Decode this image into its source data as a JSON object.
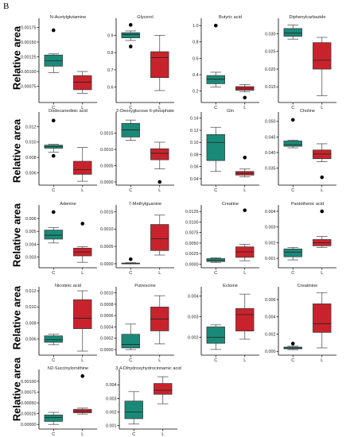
{
  "figure": {
    "panel_label": "B",
    "row_ylabel": "Relative area",
    "group_fill": {
      "C": "#1a8a78",
      "L": "#c8232c"
    }
  },
  "chart_data": [
    {
      "type": "box",
      "title": "N-Acetylglutamine",
      "ylabel": "Relative area",
      "categories": [
        "C",
        "L"
      ],
      "ylim": [
        0.0005,
        0.00185
      ],
      "yticks": [
        "0.00175",
        "0.00150",
        "0.00125",
        "0.00100",
        "0.00075"
      ],
      "ytick_values": [
        0.00175,
        0.0015,
        0.00125,
        0.001,
        0.00075
      ],
      "boxes": [
        {
          "group": "C",
          "whisker_low": 0.00098,
          "q1": 0.00109,
          "median": 0.00118,
          "q3": 0.00128,
          "whisker_high": 0.0013,
          "outliers": [
            0.0017
          ]
        },
        {
          "group": "L",
          "whisker_low": 0.00063,
          "q1": 0.00069,
          "median": 0.00082,
          "q3": 0.00093,
          "whisker_high": 0.001,
          "outliers": []
        }
      ]
    },
    {
      "type": "box",
      "title": "Glycerol",
      "categories": [
        "C",
        "L"
      ],
      "ylim": [
        0.52,
        0.98
      ],
      "yticks": [
        "0.9",
        "0.8",
        "0.7",
        "0.6"
      ],
      "ytick_values": [
        0.9,
        0.8,
        0.7,
        0.6
      ],
      "boxes": [
        {
          "group": "C",
          "whisker_low": 0.87,
          "q1": 0.885,
          "median": 0.905,
          "q3": 0.915,
          "whisker_high": 0.925,
          "outliers": [
            0.96,
            0.835
          ]
        },
        {
          "group": "L",
          "whisker_low": 0.58,
          "q1": 0.655,
          "median": 0.77,
          "q3": 0.805,
          "whisker_high": 0.9,
          "outliers": []
        }
      ]
    },
    {
      "type": "box",
      "title": "Butyric acid",
      "categories": [
        "C",
        "L"
      ],
      "ylim": [
        0.08,
        1.05
      ],
      "yticks": [
        "1.0",
        "0.8",
        "0.6",
        "0.4",
        "0.2"
      ],
      "ytick_values": [
        1.0,
        0.8,
        0.6,
        0.4,
        0.2
      ],
      "boxes": [
        {
          "group": "C",
          "whisker_low": 0.25,
          "q1": 0.29,
          "median": 0.345,
          "q3": 0.39,
          "whisker_high": 0.43,
          "outliers": [
            1.0
          ]
        },
        {
          "group": "L",
          "whisker_low": 0.19,
          "q1": 0.21,
          "median": 0.235,
          "q3": 0.255,
          "whisker_high": 0.28,
          "outliers": [
            0.12
          ]
        }
      ]
    },
    {
      "type": "box",
      "title": "Diphenylcarbazide",
      "categories": [
        "C",
        "L"
      ],
      "ylim": [
        0.011,
        0.0335
      ],
      "yticks": [
        "0.030",
        "0.025",
        "0.020",
        "0.015"
      ],
      "ytick_values": [
        0.03,
        0.025,
        0.02,
        0.015
      ],
      "boxes": [
        {
          "group": "C",
          "whisker_low": 0.0285,
          "q1": 0.0293,
          "median": 0.0302,
          "q3": 0.0315,
          "whisker_high": 0.0325,
          "outliers": []
        },
        {
          "group": "L",
          "whisker_low": 0.0125,
          "q1": 0.02,
          "median": 0.0225,
          "q3": 0.0275,
          "whisker_high": 0.029,
          "outliers": []
        }
      ]
    },
    {
      "type": "box",
      "title": "Dodecanedioic acid",
      "ylabel": "Relative area",
      "categories": [
        "C",
        "L"
      ],
      "ylim": [
        0.0046,
        0.0135
      ],
      "yticks": [
        "0.012",
        "0.010",
        "0.008",
        "0.006"
      ],
      "ytick_values": [
        0.012,
        0.01,
        0.008,
        0.006
      ],
      "boxes": [
        {
          "group": "C",
          "whisker_low": 0.0087,
          "q1": 0.0092,
          "median": 0.0094,
          "q3": 0.0096,
          "whisker_high": 0.0097,
          "outliers": [
            0.0128,
            0.0082
          ]
        },
        {
          "group": "L",
          "whisker_low": 0.0049,
          "q1": 0.0058,
          "median": 0.0064,
          "q3": 0.0075,
          "whisker_high": 0.0093,
          "outliers": []
        }
      ]
    },
    {
      "type": "box",
      "title": "2-Deoxyglucose 6-phosphate",
      "categories": [
        "C",
        "L"
      ],
      "ylim": [
        -5e-05,
        0.00205
      ],
      "yticks": [
        "0.0015",
        "0.0010",
        "0.0005",
        "0.0000"
      ],
      "ytick_values": [
        0.0015,
        0.001,
        0.0005,
        0.0
      ],
      "boxes": [
        {
          "group": "C",
          "whisker_low": 0.00128,
          "q1": 0.00138,
          "median": 0.0016,
          "q3": 0.0018,
          "whisker_high": 0.0019,
          "outliers": []
        },
        {
          "group": "L",
          "whisker_low": 0.0004,
          "q1": 0.00068,
          "median": 0.00088,
          "q3": 0.00102,
          "whisker_high": 0.00122,
          "outliers": [
            0.0
          ]
        }
      ]
    },
    {
      "type": "box",
      "title": "Gln",
      "categories": [
        "C",
        "L"
      ],
      "ylim": [
        0.032,
        0.145
      ],
      "yticks": [
        "0.14",
        "0.12",
        "0.10",
        "0.08",
        "0.06",
        "0.04"
      ],
      "ytick_values": [
        0.14,
        0.12,
        0.1,
        0.08,
        0.06,
        0.04
      ],
      "boxes": [
        {
          "group": "C",
          "whisker_low": 0.052,
          "q1": 0.07,
          "median": 0.1,
          "q3": 0.113,
          "whisker_high": 0.125,
          "outliers": []
        },
        {
          "group": "L",
          "whisker_low": 0.043,
          "q1": 0.046,
          "median": 0.049,
          "q3": 0.052,
          "whisker_high": 0.056,
          "outliers": [
            0.075
          ]
        }
      ]
    },
    {
      "type": "box",
      "title": "Choline",
      "categories": [
        "C",
        "L"
      ],
      "ylim": [
        0.03,
        0.052
      ],
      "yticks": [
        "0.050",
        "0.045",
        "0.040",
        "0.035"
      ],
      "ytick_values": [
        0.05,
        0.045,
        0.04,
        0.035
      ],
      "boxes": [
        {
          "group": "C",
          "whisker_low": 0.0415,
          "q1": 0.042,
          "median": 0.0425,
          "q3": 0.0437,
          "whisker_high": 0.044,
          "outliers": [
            0.0505
          ]
        },
        {
          "group": "L",
          "whisker_low": 0.037,
          "q1": 0.038,
          "median": 0.0395,
          "q3": 0.0408,
          "whisker_high": 0.0428,
          "outliers": [
            0.032
          ]
        }
      ]
    },
    {
      "type": "box",
      "title": "Adenine",
      "ylabel": "Relative area",
      "categories": [
        "C",
        "L"
      ],
      "ylim": [
        0.0023,
        0.0068
      ],
      "yticks": [
        "0.006",
        "0.005",
        "0.004",
        "0.003"
      ],
      "ytick_values": [
        0.006,
        0.005,
        0.004,
        0.003
      ],
      "boxes": [
        {
          "group": "C",
          "whisker_low": 0.0041,
          "q1": 0.0044,
          "median": 0.0047,
          "q3": 0.0051,
          "whisker_high": 0.0053,
          "outliers": [
            0.0065
          ]
        },
        {
          "group": "L",
          "whisker_low": 0.0026,
          "q1": 0.0031,
          "median": 0.0034,
          "q3": 0.0037,
          "whisker_high": 0.0038,
          "outliers": [
            0.0056
          ]
        }
      ]
    },
    {
      "type": "box",
      "title": "7-Methylguanine",
      "categories": [
        "C",
        "L"
      ],
      "ylim": [
        -7e-05,
        0.0016
      ],
      "yticks": [
        "0.0015",
        "0.0010",
        "0.0005",
        "0.0000"
      ],
      "ytick_values": [
        0.0015,
        0.001,
        0.0005,
        0.0
      ],
      "boxes": [
        {
          "group": "C",
          "whisker_low": 0.0,
          "q1": 0.0,
          "median": 0.0,
          "q3": 2e-05,
          "whisker_high": 3e-05,
          "outliers": [
            0.00013
          ]
        },
        {
          "group": "L",
          "whisker_low": 0.00025,
          "q1": 0.00038,
          "median": 0.00072,
          "q3": 0.00113,
          "whisker_high": 0.0014,
          "outliers": []
        }
      ]
    },
    {
      "type": "box",
      "title": "Creatine",
      "categories": [
        "C",
        "L"
      ],
      "ylim": [
        -0.0005,
        0.0133
      ],
      "yticks": [
        "0.0125",
        "0.0100",
        "0.0075",
        "0.0050",
        "0.0025",
        "0.0000"
      ],
      "ytick_values": [
        0.0125,
        0.01,
        0.0075,
        0.005,
        0.0025,
        0.0
      ],
      "boxes": [
        {
          "group": "C",
          "whisker_low": 0.0004,
          "q1": 0.0006,
          "median": 0.0009,
          "q3": 0.0013,
          "whisker_high": 0.0015,
          "outliers": []
        },
        {
          "group": "L",
          "whisker_low": 0.0008,
          "q1": 0.0016,
          "median": 0.0029,
          "q3": 0.0041,
          "whisker_high": 0.0047,
          "outliers": [
            0.0128
          ]
        }
      ]
    },
    {
      "type": "box",
      "title": "Pantothenic acid",
      "categories": [
        "C",
        "L"
      ],
      "ylim": [
        0.0005,
        0.0042
      ],
      "yticks": [
        "0.004",
        "0.003",
        "0.002",
        "0.001"
      ],
      "ytick_values": [
        0.004,
        0.003,
        0.002,
        0.001
      ],
      "boxes": [
        {
          "group": "C",
          "whisker_low": 0.0009,
          "q1": 0.0011,
          "median": 0.0014,
          "q3": 0.0016,
          "whisker_high": 0.0017,
          "outliers": []
        },
        {
          "group": "L",
          "whisker_low": 0.0017,
          "q1": 0.0018,
          "median": 0.002,
          "q3": 0.0022,
          "whisker_high": 0.0024,
          "outliers": [
            0.004
          ]
        }
      ]
    },
    {
      "type": "box",
      "title": "Nicotinic acid",
      "ylabel": "Relative area",
      "categories": [
        "C",
        "L"
      ],
      "ylim": [
        0.0042,
        0.0121
      ],
      "yticks": [
        "0.012",
        "0.010",
        "0.008",
        "0.006"
      ],
      "ytick_values": [
        0.012,
        0.01,
        0.008,
        0.006
      ],
      "boxes": [
        {
          "group": "C",
          "whisker_low": 0.0053,
          "q1": 0.0056,
          "median": 0.0059,
          "q3": 0.0064,
          "whisker_high": 0.0066,
          "outliers": []
        },
        {
          "group": "L",
          "whisker_low": 0.0045,
          "q1": 0.0073,
          "median": 0.0086,
          "q3": 0.0109,
          "whisker_high": 0.012,
          "outliers": []
        }
      ]
    },
    {
      "type": "box",
      "title": "Putrescine",
      "categories": [
        "C",
        "L"
      ],
      "ylim": [
        -7e-05,
        0.00105
      ],
      "yticks": [
        "0.0010",
        "0.0008",
        "0.0006",
        "0.0004",
        "0.0002",
        "0.0000"
      ],
      "ytick_values": [
        0.001,
        0.0008,
        0.0006,
        0.0004,
        0.0002,
        0.0
      ],
      "boxes": [
        {
          "group": "C",
          "whisker_low": 0.0,
          "q1": 3e-05,
          "median": 9e-05,
          "q3": 0.00027,
          "whisker_high": 0.00045,
          "outliers": []
        },
        {
          "group": "L",
          "whisker_low": 0.0001,
          "q1": 0.00033,
          "median": 0.00054,
          "q3": 0.00075,
          "whisker_high": 0.00095,
          "outliers": []
        }
      ]
    },
    {
      "type": "box",
      "title": "Ectoine",
      "categories": [
        "C",
        "L"
      ],
      "ylim": [
        0.0012,
        0.0043
      ],
      "yticks": [
        "0.004",
        "0.003",
        "0.002"
      ],
      "ytick_values": [
        0.004,
        0.003,
        0.002
      ],
      "boxes": [
        {
          "group": "C",
          "whisker_low": 0.0014,
          "q1": 0.0017,
          "median": 0.002,
          "q3": 0.0025,
          "whisker_high": 0.0026,
          "outliers": []
        },
        {
          "group": "L",
          "whisker_low": 0.0019,
          "q1": 0.0023,
          "median": 0.0031,
          "q3": 0.0034,
          "whisker_high": 0.0041,
          "outliers": []
        }
      ]
    },
    {
      "type": "box",
      "title": "Creatinine",
      "categories": [
        "C",
        "L"
      ],
      "ylim": [
        -0.00025,
        0.0071
      ],
      "yticks": [
        "0.006",
        "0.004",
        "0.002",
        "0.000"
      ],
      "ytick_values": [
        0.006,
        0.004,
        0.002,
        0.0
      ],
      "boxes": [
        {
          "group": "C",
          "whisker_low": 0.0002,
          "q1": 0.0003,
          "median": 0.0004,
          "q3": 0.0005,
          "whisker_high": 0.0006,
          "outliers": [
            0.0009
          ]
        },
        {
          "group": "L",
          "whisker_low": 0.0004,
          "q1": 0.0022,
          "median": 0.0032,
          "q3": 0.0055,
          "whisker_high": 0.0068,
          "outliers": []
        }
      ]
    },
    {
      "type": "box",
      "title": "N2-Succinylornithine",
      "ylabel": "Relative area",
      "categories": [
        "C",
        "L"
      ],
      "ylim": [
        -7e-05,
        0.0012
      ],
      "yticks": [
        "0.00100",
        "0.00075",
        "0.00050",
        "0.00025",
        "0.00000"
      ],
      "ytick_values": [
        0.001,
        0.00075,
        0.0005,
        0.00025,
        0.0
      ],
      "boxes": [
        {
          "group": "C",
          "whisker_low": 0.0,
          "q1": 7e-05,
          "median": 0.00016,
          "q3": 0.00022,
          "whisker_high": 0.00028,
          "outliers": []
        },
        {
          "group": "L",
          "whisker_low": 0.00024,
          "q1": 0.00027,
          "median": 0.00031,
          "q3": 0.00035,
          "whisker_high": 0.00038,
          "outliers": [
            0.00112
          ]
        }
      ]
    },
    {
      "type": "box",
      "title": "3,4-Dihydroxyhydrocinnamic acid",
      "categories": [
        "C",
        "L"
      ],
      "ylim": [
        0.00085,
        0.0049
      ],
      "yticks": [
        "0.004",
        "0.003",
        "0.002",
        "0.001"
      ],
      "ytick_values": [
        0.004,
        0.003,
        0.002,
        0.001
      ],
      "boxes": [
        {
          "group": "C",
          "whisker_low": 0.0011,
          "q1": 0.0015,
          "median": 0.002,
          "q3": 0.0028,
          "whisker_high": 0.0035,
          "outliers": []
        },
        {
          "group": "L",
          "whisker_low": 0.0026,
          "q1": 0.0033,
          "median": 0.0036,
          "q3": 0.0041,
          "whisker_high": 0.0046,
          "outliers": []
        }
      ]
    }
  ]
}
